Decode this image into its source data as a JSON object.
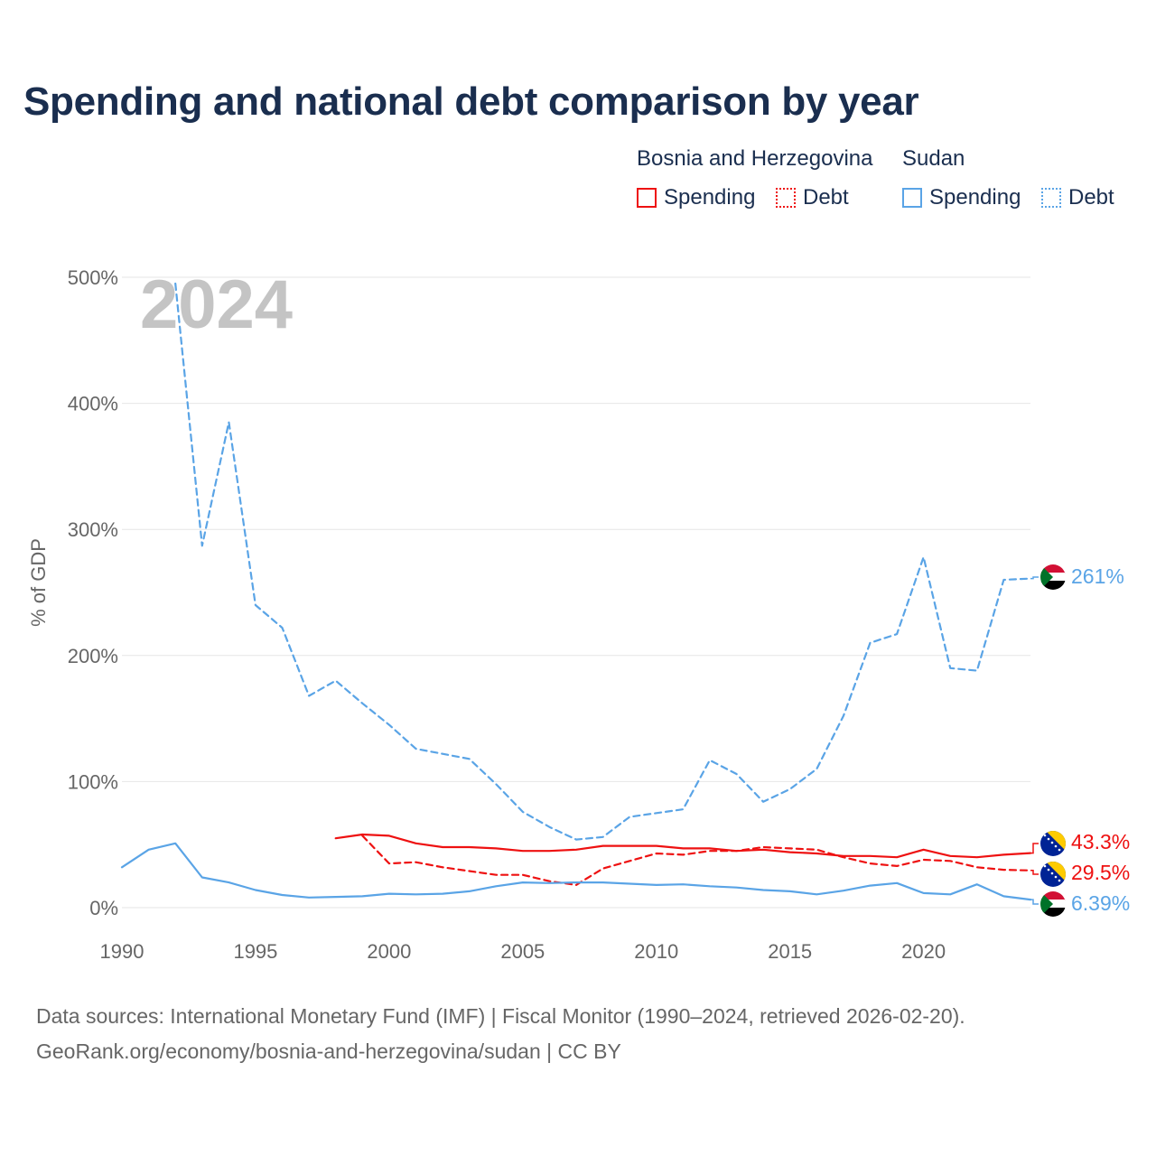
{
  "title": "Spending and national debt comparison by year",
  "legend": {
    "groups": [
      {
        "name": "Bosnia and Herzegovina",
        "color": "#ee1111",
        "items": [
          {
            "label": "Spending",
            "style": "solid"
          },
          {
            "label": "Debt",
            "style": "dotted"
          }
        ]
      },
      {
        "name": "Sudan",
        "color": "#5aa4e6",
        "items": [
          {
            "label": "Spending",
            "style": "solid"
          },
          {
            "label": "Debt",
            "style": "dotted"
          }
        ]
      }
    ]
  },
  "sources": {
    "line1": "Data sources: International Monetary Fund (IMF) | Fiscal Monitor (1990–2024, retrieved 2026-02-20).",
    "line2": "GeoRank.org/economy/bosnia-and-herzegovina/sudan | CC BY"
  },
  "chart_data": {
    "type": "line",
    "year_label": "2024",
    "ylabel": "% of GDP",
    "xlim": [
      1990,
      2024
    ],
    "ylim": [
      0,
      500
    ],
    "x_ticks": [
      1990,
      1995,
      2000,
      2005,
      2010,
      2015,
      2020
    ],
    "y_ticks": [
      0,
      100,
      200,
      300,
      400,
      500
    ],
    "y_tick_labels": [
      "0%",
      "100%",
      "200%",
      "300%",
      "400%",
      "500%"
    ],
    "series": [
      {
        "name": "Sudan Debt",
        "country": "Sudan",
        "metric": "Debt",
        "color": "#5aa4e6",
        "dash": "dashed",
        "x": [
          1992,
          1993,
          1994,
          1995,
          1996,
          1997,
          1998,
          1999,
          2000,
          2001,
          2002,
          2003,
          2004,
          2005,
          2006,
          2007,
          2008,
          2009,
          2010,
          2011,
          2012,
          2013,
          2014,
          2015,
          2016,
          2017,
          2018,
          2019,
          2020,
          2021,
          2022,
          2023,
          2024
        ],
        "y": [
          495,
          287,
          385,
          240,
          222,
          168,
          180,
          162,
          145,
          126,
          122,
          118,
          98,
          76,
          64,
          54,
          56,
          72,
          75,
          78,
          117,
          106,
          84,
          94,
          110,
          152,
          210,
          217,
          278,
          190,
          188,
          260,
          261
        ],
        "end_label": "261%"
      },
      {
        "name": "Bosnia and Herzegovina Spending",
        "country": "Bosnia and Herzegovina",
        "metric": "Spending",
        "color": "#ee1111",
        "dash": "solid",
        "x": [
          1998,
          1999,
          2000,
          2001,
          2002,
          2003,
          2004,
          2005,
          2006,
          2007,
          2008,
          2009,
          2010,
          2011,
          2012,
          2013,
          2014,
          2015,
          2016,
          2017,
          2018,
          2019,
          2020,
          2021,
          2022,
          2023,
          2024
        ],
        "y": [
          55,
          58,
          57,
          51,
          48,
          48,
          47,
          45,
          45,
          46,
          49,
          49,
          49,
          47,
          47,
          45,
          46,
          44,
          43,
          41,
          41,
          40,
          46,
          41,
          40,
          42,
          43.3
        ],
        "end_label": "43.3%"
      },
      {
        "name": "Bosnia and Herzegovina Debt",
        "country": "Bosnia and Herzegovina",
        "metric": "Debt",
        "color": "#ee1111",
        "dash": "dashed",
        "x": [
          1999,
          2000,
          2001,
          2002,
          2003,
          2004,
          2005,
          2006,
          2007,
          2008,
          2009,
          2010,
          2011,
          2012,
          2013,
          2014,
          2015,
          2016,
          2017,
          2018,
          2019,
          2020,
          2021,
          2022,
          2023,
          2024
        ],
        "y": [
          57,
          35,
          36,
          32,
          29,
          26,
          26,
          21,
          18,
          31,
          37,
          43,
          42,
          45,
          45,
          48,
          47,
          46,
          40,
          35,
          33,
          38,
          37,
          32,
          30,
          29.5
        ],
        "end_label": "29.5%"
      },
      {
        "name": "Sudan Spending",
        "country": "Sudan",
        "metric": "Spending",
        "color": "#5aa4e6",
        "dash": "solid",
        "x": [
          1990,
          1991,
          1992,
          1993,
          1994,
          1995,
          1996,
          1997,
          1998,
          1999,
          2000,
          2001,
          2002,
          2003,
          2004,
          2005,
          2006,
          2007,
          2008,
          2009,
          2010,
          2011,
          2012,
          2013,
          2014,
          2015,
          2016,
          2017,
          2018,
          2019,
          2020,
          2021,
          2022,
          2023,
          2024
        ],
        "y": [
          32,
          46,
          51,
          24,
          20,
          14,
          10,
          8,
          8.5,
          9,
          11,
          10.5,
          11,
          13,
          17,
          20,
          19.5,
          20,
          20,
          19,
          18,
          18.5,
          17,
          16,
          14,
          13,
          10.5,
          13.5,
          17.5,
          19.5,
          11.5,
          10.5,
          18.5,
          9,
          6.39
        ],
        "end_label": "6.39%"
      }
    ]
  }
}
